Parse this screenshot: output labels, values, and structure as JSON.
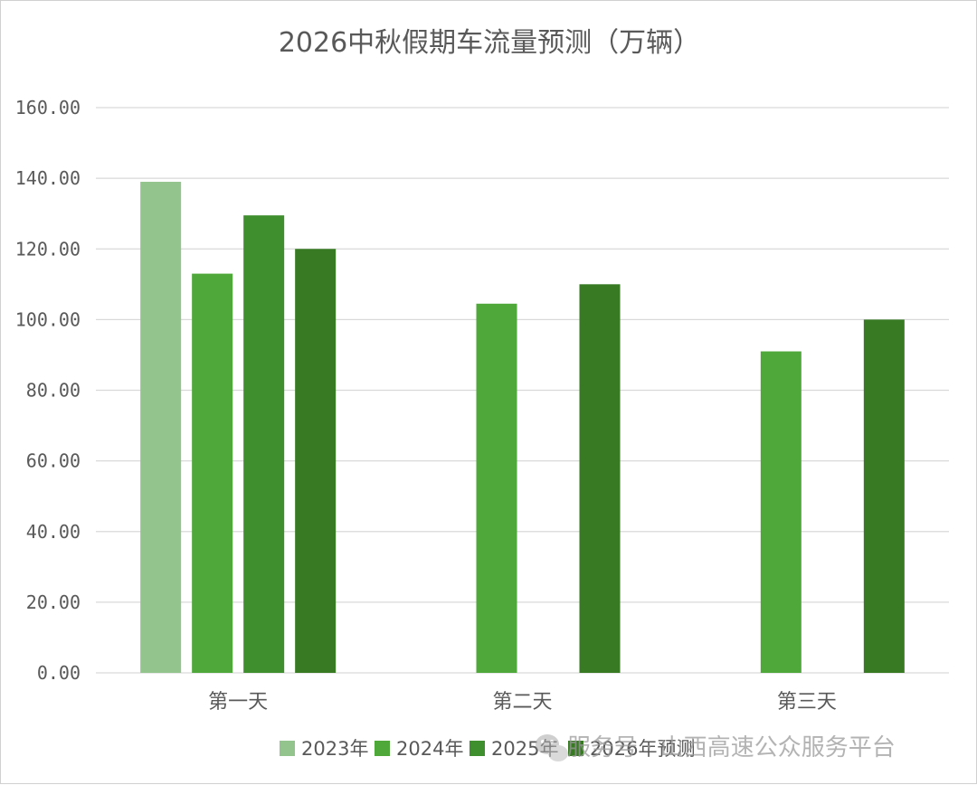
{
  "chart_data": {
    "type": "bar",
    "title": "2026中秋假期车流量预测（万辆）",
    "categories": [
      "第一天",
      "第二天",
      "第三天"
    ],
    "series": [
      {
        "name": "2023年",
        "color": "#93c48d",
        "values": [
          139.0,
          null,
          null
        ]
      },
      {
        "name": "2024年",
        "color": "#4fa83a",
        "values": [
          113.0,
          104.5,
          91.0
        ]
      },
      {
        "name": "2025年",
        "color": "#3f8f2e",
        "values": [
          129.5,
          null,
          null
        ]
      },
      {
        "name": "2026年预测",
        "color": "#377a23",
        "values": [
          120.0,
          110.0,
          100.0
        ]
      }
    ],
    "ylim": [
      0,
      160
    ],
    "yticks": [
      "0.00",
      "20.00",
      "40.00",
      "60.00",
      "80.00",
      "100.00",
      "120.00",
      "140.00",
      "160.00"
    ],
    "ytick_values": [
      0,
      20,
      40,
      60,
      80,
      100,
      120,
      140,
      160
    ],
    "grid": true,
    "legend_position": "bottom",
    "xlabel": "",
    "ylabel": ""
  },
  "watermark": {
    "icon": "wechat-icon",
    "text": "服务号 · 山西高速公众服务平台"
  }
}
